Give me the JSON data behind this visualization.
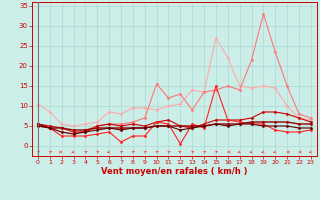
{
  "title": "",
  "xlabel": "Vent moyen/en rafales ( km/h )",
  "xlim": [
    -0.5,
    23.5
  ],
  "ylim": [
    -2.5,
    36
  ],
  "yticks": [
    0,
    5,
    10,
    15,
    20,
    25,
    30,
    35
  ],
  "xticks": [
    0,
    1,
    2,
    3,
    4,
    5,
    6,
    7,
    8,
    9,
    10,
    11,
    12,
    13,
    14,
    15,
    16,
    17,
    18,
    19,
    20,
    21,
    22,
    23
  ],
  "bg_color": "#cceee8",
  "grid_color": "#aad8d0",
  "series": [
    {
      "x": [
        0,
        1,
        2,
        3,
        4,
        5,
        6,
        7,
        8,
        9,
        10,
        11,
        12,
        13,
        14,
        15,
        16,
        17,
        18,
        19,
        20,
        21,
        22,
        23
      ],
      "y": [
        10.5,
        8.5,
        5.5,
        5.0,
        5.5,
        6.0,
        8.5,
        8.0,
        9.5,
        9.5,
        9.0,
        10.0,
        10.5,
        14.0,
        13.5,
        27.0,
        22.0,
        15.0,
        14.5,
        15.0,
        14.5,
        10.0,
        7.0,
        6.5
      ],
      "color": "#ffaaaa",
      "marker": "D",
      "markersize": 1.5,
      "linewidth": 0.8
    },
    {
      "x": [
        0,
        1,
        2,
        3,
        4,
        5,
        6,
        7,
        8,
        9,
        10,
        11,
        12,
        13,
        14,
        15,
        16,
        17,
        18,
        19,
        20,
        21,
        22,
        23
      ],
      "y": [
        5.5,
        4.5,
        3.5,
        3.0,
        4.0,
        5.0,
        5.5,
        5.5,
        6.0,
        7.0,
        15.5,
        12.0,
        13.0,
        9.0,
        13.5,
        14.0,
        15.0,
        14.0,
        21.5,
        33.0,
        23.5,
        15.0,
        8.0,
        7.0
      ],
      "color": "#ff7777",
      "marker": "D",
      "markersize": 1.5,
      "linewidth": 0.8
    },
    {
      "x": [
        0,
        1,
        2,
        3,
        4,
        5,
        6,
        7,
        8,
        9,
        10,
        11,
        12,
        13,
        14,
        15,
        16,
        17,
        18,
        19,
        20,
        21,
        22,
        23
      ],
      "y": [
        5.5,
        5.0,
        4.5,
        3.5,
        3.5,
        5.0,
        5.5,
        5.0,
        5.5,
        5.0,
        6.0,
        6.5,
        5.0,
        4.5,
        5.5,
        6.5,
        6.5,
        6.5,
        7.0,
        8.5,
        8.5,
        8.0,
        7.0,
        6.0
      ],
      "color": "#cc0000",
      "marker": "D",
      "markersize": 1.5,
      "linewidth": 0.8
    },
    {
      "x": [
        0,
        1,
        2,
        3,
        4,
        5,
        6,
        7,
        8,
        9,
        10,
        11,
        12,
        13,
        14,
        15,
        16,
        17,
        18,
        19,
        20,
        21,
        22,
        23
      ],
      "y": [
        5.0,
        4.5,
        2.5,
        2.5,
        2.5,
        3.0,
        3.5,
        1.0,
        2.5,
        2.5,
        6.0,
        5.5,
        0.5,
        5.5,
        4.5,
        15.0,
        6.5,
        6.0,
        5.5,
        5.5,
        4.0,
        3.5,
        3.5,
        4.0
      ],
      "color": "#ff2222",
      "marker": "D",
      "markersize": 1.5,
      "linewidth": 0.8
    },
    {
      "x": [
        0,
        1,
        2,
        3,
        4,
        5,
        6,
        7,
        8,
        9,
        10,
        11,
        12,
        13,
        14,
        15,
        16,
        17,
        18,
        19,
        20,
        21,
        22,
        23
      ],
      "y": [
        5.5,
        4.5,
        4.5,
        4.0,
        4.0,
        4.5,
        4.5,
        4.5,
        4.5,
        4.5,
        5.0,
        5.0,
        5.0,
        5.0,
        5.0,
        5.5,
        5.5,
        5.5,
        6.0,
        6.0,
        6.0,
        6.0,
        5.5,
        5.5
      ],
      "color": "#990000",
      "marker": "D",
      "markersize": 1.5,
      "linewidth": 1.0
    },
    {
      "x": [
        0,
        1,
        2,
        3,
        4,
        5,
        6,
        7,
        8,
        9,
        10,
        11,
        12,
        13,
        14,
        15,
        16,
        17,
        18,
        19,
        20,
        21,
        22,
        23
      ],
      "y": [
        5.0,
        4.5,
        3.5,
        3.0,
        3.5,
        4.0,
        4.5,
        4.0,
        4.5,
        4.5,
        5.0,
        5.0,
        4.0,
        4.5,
        5.0,
        5.5,
        5.0,
        5.5,
        5.5,
        5.0,
        5.0,
        5.0,
        4.5,
        4.5
      ],
      "color": "#660000",
      "marker": "D",
      "markersize": 1.5,
      "linewidth": 0.8
    }
  ],
  "arrow_color": "#ff4444",
  "wind_dirs": [
    45,
    45,
    90,
    225,
    45,
    45,
    225,
    45,
    45,
    45,
    45,
    45,
    315,
    45,
    45,
    45,
    270,
    225,
    225,
    225,
    225,
    270,
    270,
    225
  ]
}
